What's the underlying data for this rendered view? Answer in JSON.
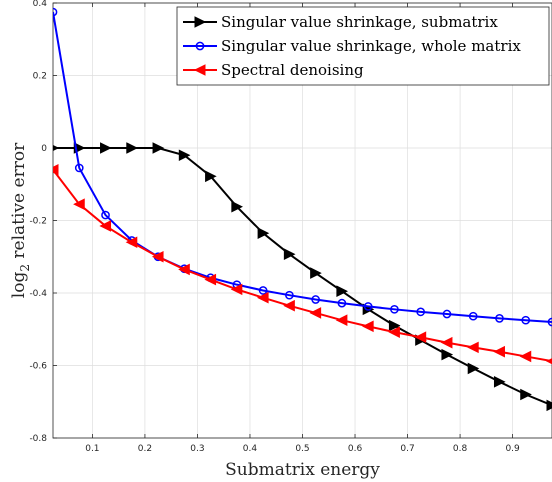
{
  "chart_data": {
    "type": "line",
    "xlabel": "Submatrix energy",
    "ylabel_main": "log",
    "ylabel_sub": "2",
    "ylabel_rest": " relative error",
    "xlim": [
      0.025,
      0.975
    ],
    "ylim": [
      -0.8,
      0.4
    ],
    "xticks": [
      0.1,
      0.2,
      0.3,
      0.4,
      0.5,
      0.6,
      0.7,
      0.8,
      0.9
    ],
    "xtick_labels": [
      "0.1",
      "0.2",
      "0.3",
      "0.4",
      "0.5",
      "0.6",
      "0.7",
      "0.8",
      "0.9"
    ],
    "yticks": [
      -0.8,
      -0.6,
      -0.4,
      -0.2,
      0,
      0.2,
      0.4
    ],
    "ytick_labels": [
      "-0.8",
      "-0.6",
      "-0.4",
      "-0.2",
      "0",
      "0.2",
      "0.4"
    ],
    "grid": true,
    "legend_position": "top-right",
    "series": [
      {
        "name": "Singular value shrinkage, submatrix",
        "color": "#000000",
        "marker": "triangle-right",
        "x": [
          0.025,
          0.075,
          0.125,
          0.175,
          0.225,
          0.275,
          0.325,
          0.375,
          0.425,
          0.475,
          0.525,
          0.575,
          0.625,
          0.675,
          0.725,
          0.775,
          0.825,
          0.875,
          0.925,
          0.975
        ],
        "y": [
          0.0,
          0.0,
          0.0,
          0.0,
          0.0,
          -0.02,
          -0.078,
          -0.162,
          -0.235,
          -0.293,
          -0.345,
          -0.395,
          -0.445,
          -0.49,
          -0.53,
          -0.57,
          -0.608,
          -0.645,
          -0.68,
          -0.71
        ]
      },
      {
        "name": "Singular value shrinkage, whole matrix",
        "color": "#0000ff",
        "marker": "circle",
        "x": [
          0.025,
          0.075,
          0.125,
          0.175,
          0.225,
          0.275,
          0.325,
          0.375,
          0.425,
          0.475,
          0.525,
          0.575,
          0.625,
          0.675,
          0.725,
          0.775,
          0.825,
          0.875,
          0.925,
          0.975
        ],
        "y": [
          0.375,
          -0.055,
          -0.185,
          -0.255,
          -0.3,
          -0.333,
          -0.358,
          -0.377,
          -0.393,
          -0.406,
          -0.418,
          -0.428,
          -0.437,
          -0.445,
          -0.452,
          -0.458,
          -0.464,
          -0.47,
          -0.475,
          -0.48
        ]
      },
      {
        "name": "Spectral denoising",
        "color": "#ff0000",
        "marker": "triangle-left",
        "x": [
          0.025,
          0.075,
          0.125,
          0.175,
          0.225,
          0.275,
          0.325,
          0.375,
          0.425,
          0.475,
          0.525,
          0.575,
          0.625,
          0.675,
          0.725,
          0.775,
          0.825,
          0.875,
          0.925,
          0.975
        ],
        "y": [
          -0.06,
          -0.155,
          -0.215,
          -0.26,
          -0.3,
          -0.335,
          -0.363,
          -0.39,
          -0.413,
          -0.435,
          -0.455,
          -0.475,
          -0.492,
          -0.508,
          -0.522,
          -0.537,
          -0.55,
          -0.562,
          -0.575,
          -0.588
        ]
      }
    ]
  }
}
